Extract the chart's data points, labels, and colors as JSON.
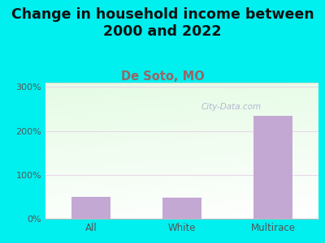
{
  "title": "Change in household income between\n2000 and 2022",
  "subtitle": "De Soto, MO",
  "categories": [
    "All",
    "White",
    "Multirace"
  ],
  "values": [
    50,
    48,
    235
  ],
  "bar_color": "#c4a8d4",
  "background_outer": "#00efef",
  "background_inner_top_left": "#d8efd0",
  "background_inner_bottom_right": "#f5f5f0",
  "grid_color": "#e8d8e8",
  "yticks": [
    0,
    100,
    200,
    300
  ],
  "ytick_labels": [
    "0%",
    "100%",
    "200%",
    "300%"
  ],
  "ylim": [
    0,
    310
  ],
  "title_fontsize": 12.5,
  "subtitle_fontsize": 10.5,
  "subtitle_color": "#996666",
  "tick_label_color": "#555555",
  "watermark": "City-Data.com",
  "watermark_color": "#aaaacc",
  "top_border_color": "#dddddd"
}
